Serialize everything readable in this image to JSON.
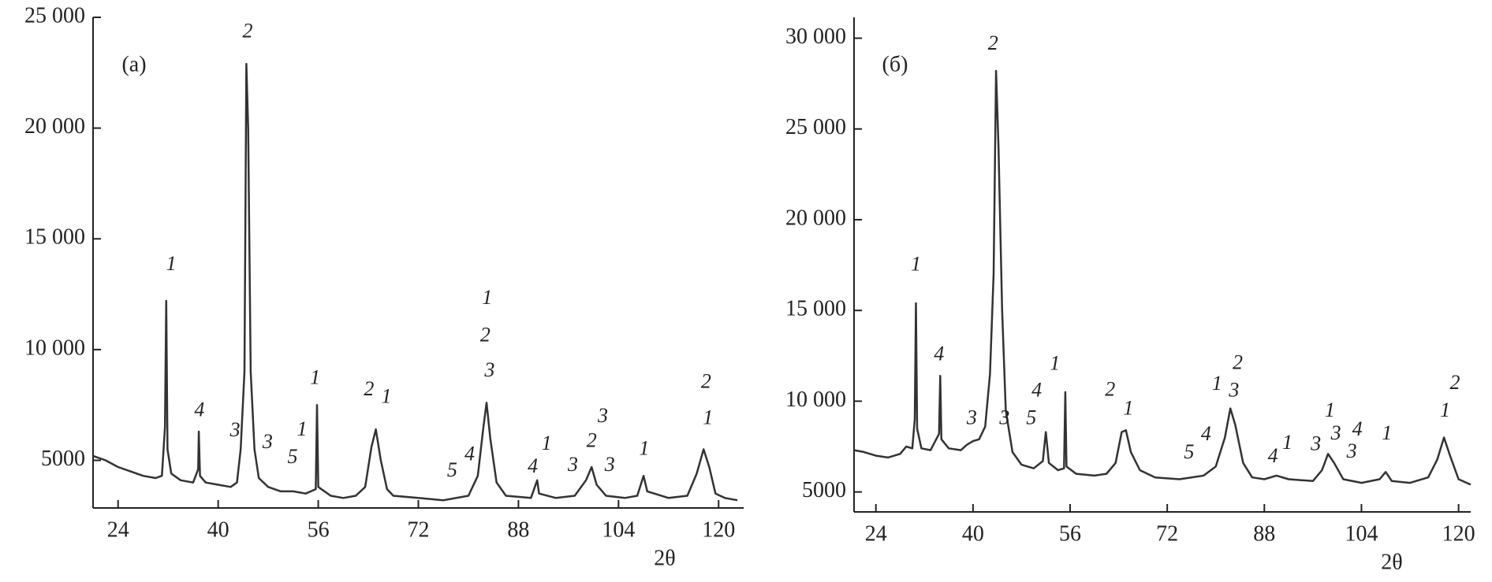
{
  "chart_data": [
    {
      "type": "line",
      "panel_label": "(a)",
      "x_label": "2θ",
      "xlim": [
        20,
        124
      ],
      "ylim": [
        2850,
        25000
      ],
      "xticks": [
        24,
        40,
        56,
        72,
        88,
        104,
        120
      ],
      "yticks": [
        5000,
        {
          "value": 10000,
          "label": "10 000"
        },
        {
          "value": 15000,
          "label": "15 000"
        },
        {
          "value": 20000,
          "label": "20 000"
        },
        {
          "value": 25000,
          "label": "25 000"
        }
      ],
      "x": [
        20,
        22,
        24,
        26,
        28,
        30,
        31,
        31.5,
        31.7,
        31.9,
        32.5,
        34,
        36,
        36.8,
        36.9,
        37.1,
        38,
        40,
        42,
        43,
        43.6,
        44.2,
        44.5,
        44.8,
        45.2,
        45.8,
        46.5,
        48,
        50,
        52,
        54,
        55.6,
        55.8,
        56,
        58,
        60,
        62,
        63.5,
        64.5,
        65.2,
        66,
        67,
        68,
        72,
        76,
        80,
        81.5,
        82.4,
        82.9,
        83.5,
        84.5,
        86,
        90,
        91,
        91.3,
        94,
        97,
        98.8,
        99.7,
        100.5,
        102,
        105,
        107,
        108,
        108.6,
        112,
        115,
        116.5,
        117.6,
        118.5,
        119.5,
        121,
        123
      ],
      "series": [
        {
          "color": "#333333",
          "values": [
            5200,
            5000,
            4700,
            4500,
            4300,
            4200,
            4300,
            6500,
            12200,
            5500,
            4400,
            4100,
            4000,
            4600,
            6300,
            4300,
            4000,
            3900,
            3800,
            4000,
            5500,
            9000,
            22900,
            20000,
            9000,
            5500,
            4200,
            3800,
            3600,
            3600,
            3500,
            3700,
            7500,
            3800,
            3400,
            3300,
            3400,
            3800,
            5600,
            6400,
            5000,
            3700,
            3400,
            3300,
            3200,
            3400,
            4300,
            6500,
            7600,
            6000,
            4000,
            3400,
            3300,
            4100,
            3500,
            3300,
            3400,
            4100,
            4700,
            3900,
            3400,
            3300,
            3400,
            4300,
            3600,
            3300,
            3400,
            4400,
            5500,
            4700,
            3500,
            3300,
            3200
          ]
        }
      ],
      "annotations": [
        {
          "text": "1",
          "x": 32.5,
          "y": 13800
        },
        {
          "text": "4",
          "x": 37,
          "y": 7200
        },
        {
          "text": "2",
          "x": 44.7,
          "y": 24300
        },
        {
          "text": "3",
          "x": 42.7,
          "y": 6290
        },
        {
          "text": "3",
          "x": 47.9,
          "y": 5770
        },
        {
          "text": "5",
          "x": 51.9,
          "y": 5090
        },
        {
          "text": "1",
          "x": 53.4,
          "y": 6330
        },
        {
          "text": "1",
          "x": 55.5,
          "y": 8660
        },
        {
          "text": "2",
          "x": 64.1,
          "y": 8140
        },
        {
          "text": "1",
          "x": 66.9,
          "y": 7800
        },
        {
          "text": "1",
          "x": 83,
          "y": 12270
        },
        {
          "text": "2",
          "x": 82.7,
          "y": 10590
        },
        {
          "text": "3",
          "x": 83.4,
          "y": 9000
        },
        {
          "text": "5",
          "x": 77.4,
          "y": 4480
        },
        {
          "text": "4",
          "x": 80.2,
          "y": 5210
        },
        {
          "text": "4",
          "x": 90.3,
          "y": 4660
        },
        {
          "text": "1",
          "x": 92.5,
          "y": 5690
        },
        {
          "text": "3",
          "x": 96.7,
          "y": 4740
        },
        {
          "text": "2",
          "x": 99.7,
          "y": 5820
        },
        {
          "text": "3",
          "x": 101.5,
          "y": 6940
        },
        {
          "text": "3",
          "x": 102.6,
          "y": 4740
        },
        {
          "text": "1",
          "x": 108.1,
          "y": 5470
        },
        {
          "text": "2",
          "x": 118,
          "y": 8480
        },
        {
          "text": "1",
          "x": 118.3,
          "y": 6850
        }
      ]
    },
    {
      "type": "line",
      "panel_label": "(б)",
      "x_label": "2θ",
      "xlim": [
        20.4,
        122
      ],
      "ylim": [
        3900,
        31150
      ],
      "xticks": [
        24,
        40,
        56,
        72,
        88,
        104,
        120
      ],
      "yticks": [
        5000,
        {
          "value": 10000,
          "label": "10 000"
        },
        {
          "value": 15000,
          "label": "15 000"
        },
        {
          "value": 20000,
          "label": "20 000"
        },
        {
          "value": 25000,
          "label": "25 000"
        },
        {
          "value": 30000,
          "label": "30 000"
        }
      ],
      "x": [
        20.4,
        22,
        24,
        26,
        28,
        29,
        30,
        30.4,
        30.6,
        30.8,
        31.5,
        33,
        34.4,
        34.6,
        34.8,
        36,
        38,
        39,
        40,
        41,
        42,
        42.8,
        43.4,
        43.8,
        44.2,
        44.8,
        45.4,
        46.5,
        48,
        50,
        51.5,
        52,
        52.5,
        54,
        55,
        55.2,
        55.4,
        57,
        60,
        62,
        63.5,
        64.5,
        65.2,
        66,
        67.5,
        70,
        74,
        78,
        80,
        81.5,
        82.4,
        83.2,
        84.5,
        86,
        88,
        90,
        92,
        96,
        97.5,
        98.5,
        99.5,
        101,
        104,
        107,
        108,
        109,
        112,
        115,
        116.5,
        117.6,
        118.6,
        120,
        122
      ],
      "series": [
        {
          "color": "#333333",
          "values": [
            7300,
            7200,
            7000,
            6900,
            7100,
            7500,
            7400,
            9000,
            15400,
            8500,
            7400,
            7300,
            8200,
            11400,
            7900,
            7400,
            7300,
            7600,
            7800,
            7900,
            8600,
            11500,
            17000,
            28200,
            24000,
            15000,
            9500,
            7200,
            6500,
            6300,
            6700,
            8300,
            6600,
            6200,
            6300,
            10500,
            6400,
            6000,
            5900,
            6000,
            6600,
            8300,
            8400,
            7200,
            6200,
            5800,
            5700,
            5900,
            6400,
            8000,
            9600,
            8700,
            6600,
            5800,
            5700,
            5900,
            5700,
            5600,
            6200,
            7100,
            6600,
            5700,
            5500,
            5700,
            6100,
            5600,
            5500,
            5800,
            6800,
            8000,
            7000,
            5700,
            5400
          ]
        }
      ],
      "annotations": [
        {
          "text": "1",
          "x": 30.6,
          "y": 17450
        },
        {
          "text": "4",
          "x": 34.4,
          "y": 12510
        },
        {
          "text": "2",
          "x": 43.3,
          "y": 29630
        },
        {
          "text": "3",
          "x": 39.8,
          "y": 8990
        },
        {
          "text": "3",
          "x": 45.2,
          "y": 8990
        },
        {
          "text": "5",
          "x": 49.6,
          "y": 8990
        },
        {
          "text": "4",
          "x": 50.5,
          "y": 10510
        },
        {
          "text": "1",
          "x": 53.5,
          "y": 11990
        },
        {
          "text": "2",
          "x": 62.6,
          "y": 10570
        },
        {
          "text": "1",
          "x": 65.6,
          "y": 9520
        },
        {
          "text": "5",
          "x": 75.6,
          "y": 7100
        },
        {
          "text": "4",
          "x": 78.4,
          "y": 8100
        },
        {
          "text": "1",
          "x": 80.2,
          "y": 10880
        },
        {
          "text": "2",
          "x": 83.6,
          "y": 12040
        },
        {
          "text": "3",
          "x": 83,
          "y": 10510
        },
        {
          "text": "4",
          "x": 89.4,
          "y": 6890
        },
        {
          "text": "1",
          "x": 91.8,
          "y": 7630
        },
        {
          "text": "3",
          "x": 96.5,
          "y": 7570
        },
        {
          "text": "1",
          "x": 98.8,
          "y": 9410
        },
        {
          "text": "3",
          "x": 99.8,
          "y": 8150
        },
        {
          "text": "4",
          "x": 103.3,
          "y": 8360
        },
        {
          "text": "3",
          "x": 102.4,
          "y": 7150
        },
        {
          "text": "1",
          "x": 108.2,
          "y": 8150
        },
        {
          "text": "2",
          "x": 119.4,
          "y": 10930
        },
        {
          "text": "1",
          "x": 117.8,
          "y": 9410
        }
      ]
    }
  ]
}
